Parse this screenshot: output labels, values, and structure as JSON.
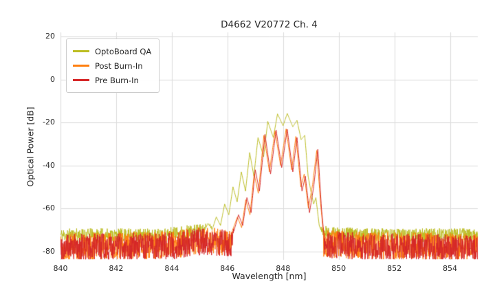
{
  "chart_data": {
    "type": "line",
    "title": "D4662 V20772 Ch. 4",
    "xlabel": "Wavelength [nm]",
    "ylabel": "Optical Power [dB]",
    "xlim": [
      840,
      855
    ],
    "ylim": [
      -84,
      22
    ],
    "xticks": [
      840,
      842,
      844,
      846,
      848,
      850,
      852,
      854
    ],
    "yticks": [
      20,
      0,
      -20,
      -40,
      -60,
      -80
    ],
    "grid": true,
    "grid_color": "#dcdcdc",
    "legend_position": "upper left",
    "noise_step_nm": 0.01,
    "series": [
      {
        "name": "OptoBoard QA",
        "color": "#bcbd22",
        "seed": 11,
        "noise_spread_db": 3.2,
        "floor": [
          [
            840,
            -72.5
          ],
          [
            843.5,
            -72.5
          ],
          [
            844.5,
            -71
          ],
          [
            845.3,
            -70
          ],
          [
            846.0,
            -70.5
          ],
          [
            849.6,
            -71.5
          ],
          [
            851,
            -72.5
          ],
          [
            855,
            -72.5
          ]
        ],
        "envelope": [
          [
            845.15,
            -71
          ],
          [
            845.3,
            -67
          ],
          [
            845.45,
            -70
          ],
          [
            845.6,
            -64
          ],
          [
            845.75,
            -68
          ],
          [
            845.9,
            -58
          ],
          [
            846.05,
            -63
          ],
          [
            846.2,
            -50
          ],
          [
            846.35,
            -57
          ],
          [
            846.5,
            -43
          ],
          [
            846.65,
            -52
          ],
          [
            846.8,
            -34
          ],
          [
            846.95,
            -45
          ],
          [
            847.1,
            -27
          ],
          [
            847.3,
            -36
          ],
          [
            847.45,
            -19.5
          ],
          [
            847.65,
            -27
          ],
          [
            847.8,
            -16
          ],
          [
            848.0,
            -21.5
          ],
          [
            848.15,
            -15.8
          ],
          [
            848.35,
            -22
          ],
          [
            848.5,
            -19
          ],
          [
            848.65,
            -28
          ],
          [
            848.78,
            -26
          ],
          [
            848.9,
            -45
          ],
          [
            849.0,
            -52
          ],
          [
            849.1,
            -58
          ],
          [
            849.18,
            -55
          ],
          [
            849.3,
            -68
          ],
          [
            849.45,
            -73
          ]
        ]
      },
      {
        "name": "Post Burn-In",
        "color": "#ff7f0e",
        "seed": 55,
        "noise_spread_db": 6.5,
        "floor": [
          [
            840,
            -78
          ],
          [
            844,
            -77
          ],
          [
            845,
            -75
          ],
          [
            846.3,
            -75.5
          ],
          [
            849.7,
            -76.5
          ],
          [
            851,
            -77.5
          ],
          [
            855,
            -78
          ]
        ],
        "envelope": [
          [
            846.16,
            -71
          ],
          [
            846.36,
            -64
          ],
          [
            846.51,
            -69
          ],
          [
            846.66,
            -56
          ],
          [
            846.81,
            -63
          ],
          [
            846.96,
            -44
          ],
          [
            847.11,
            -53
          ],
          [
            847.31,
            -26
          ],
          [
            847.51,
            -43
          ],
          [
            847.71,
            -24
          ],
          [
            847.91,
            -40
          ],
          [
            848.11,
            -23
          ],
          [
            848.31,
            -42
          ],
          [
            848.46,
            -26.5
          ],
          [
            848.64,
            -50
          ],
          [
            848.76,
            -44
          ],
          [
            848.91,
            -60
          ],
          [
            849.06,
            -49
          ],
          [
            849.21,
            -33
          ],
          [
            849.35,
            -58
          ],
          [
            849.46,
            -73
          ]
        ]
      },
      {
        "name": "Pre Burn-In",
        "color": "#d62728",
        "seed": 99,
        "noise_spread_db": 6.5,
        "floor": [
          [
            840,
            -78.5
          ],
          [
            844,
            -77.5
          ],
          [
            845,
            -75.5
          ],
          [
            846.3,
            -76
          ],
          [
            849.7,
            -77
          ],
          [
            851,
            -78
          ],
          [
            855,
            -78.5
          ]
        ],
        "envelope": [
          [
            846.2,
            -72
          ],
          [
            846.4,
            -63
          ],
          [
            846.55,
            -68
          ],
          [
            846.7,
            -55
          ],
          [
            846.85,
            -62
          ],
          [
            847.0,
            -42
          ],
          [
            847.15,
            -52
          ],
          [
            847.35,
            -25.5
          ],
          [
            847.55,
            -44
          ],
          [
            847.75,
            -23.5
          ],
          [
            847.95,
            -41
          ],
          [
            848.15,
            -23.2
          ],
          [
            848.35,
            -43
          ],
          [
            848.5,
            -27
          ],
          [
            848.68,
            -52
          ],
          [
            848.8,
            -45
          ],
          [
            848.95,
            -62
          ],
          [
            849.1,
            -50
          ],
          [
            849.25,
            -32.5
          ],
          [
            849.38,
            -60
          ],
          [
            849.48,
            -74
          ]
        ]
      }
    ]
  }
}
